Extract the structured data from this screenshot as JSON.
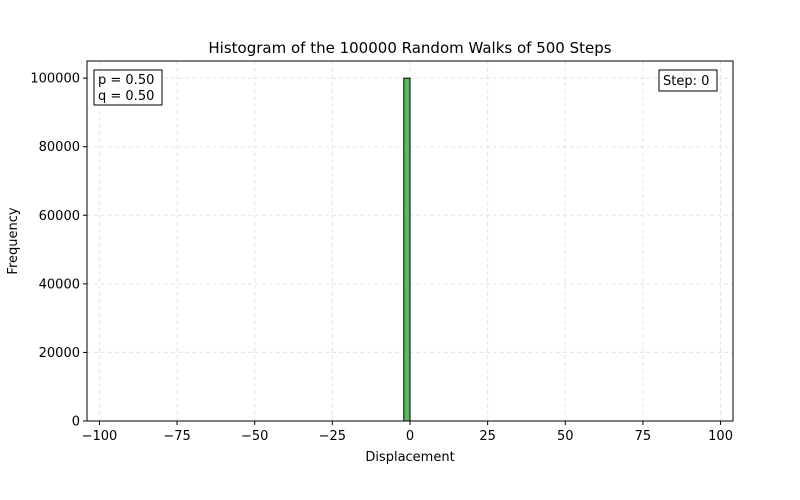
{
  "chart_data": {
    "type": "bar",
    "title": "Histogram of the 100000 Random Walks of 500 Steps",
    "xlabel": "Displacement",
    "ylabel": "Frequency",
    "xlim": [
      -104,
      104
    ],
    "ylim": [
      0,
      105000
    ],
    "xticks": [
      -100,
      -75,
      -50,
      -25,
      0,
      25,
      50,
      75,
      100
    ],
    "xtick_labels": [
      "−100",
      "−75",
      "−50",
      "−25",
      "0",
      "25",
      "50",
      "75",
      "100"
    ],
    "yticks": [
      0,
      20000,
      40000,
      60000,
      80000,
      100000
    ],
    "ytick_labels": [
      "0",
      "20000",
      "40000",
      "60000",
      "80000",
      "100000"
    ],
    "grid": true,
    "bar_color": "#5cb85c",
    "bins": [
      {
        "x0": -2,
        "x1": 0,
        "value": 100000
      }
    ],
    "annotations": {
      "params": [
        "p = 0.50",
        "q = 0.50"
      ],
      "step": "Step: 0"
    }
  }
}
